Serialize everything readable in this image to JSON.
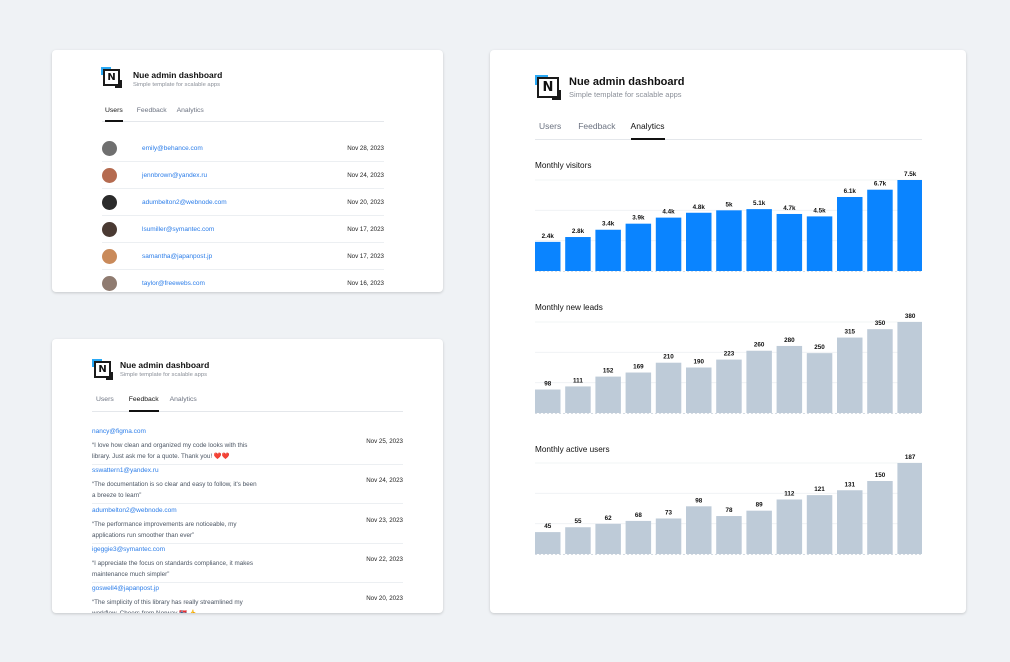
{
  "app": {
    "title": "Nue admin dashboard",
    "subtitle": "Simple template for scalable apps",
    "logo_letter": "N",
    "tabs": [
      "Users",
      "Feedback",
      "Analytics"
    ]
  },
  "colors": {
    "accent": "#0a84ff",
    "muted_bar": "#becbd8",
    "link": "#2b7de9"
  },
  "users": [
    {
      "email": "emily@behance.com",
      "date": "Nov 28, 2023",
      "avatar_color": "#6f6f6f"
    },
    {
      "email": "jennbrown@yandex.ru",
      "date": "Nov 24, 2023",
      "avatar_color": "#b56b50"
    },
    {
      "email": "adumbelton2@webnode.com",
      "date": "Nov 20, 2023",
      "avatar_color": "#2b2b2b"
    },
    {
      "email": "lsumiller@symantec.com",
      "date": "Nov 17, 2023",
      "avatar_color": "#4a3a33"
    },
    {
      "email": "samantha@japanpost.jp",
      "date": "Nov 17, 2023",
      "avatar_color": "#c98a5a"
    },
    {
      "email": "taylor@freewebs.com",
      "date": "Nov 16, 2023",
      "avatar_color": "#8f7b70"
    }
  ],
  "feedback": [
    {
      "email": "nancy@figma.com",
      "date": "Nov 25, 2023",
      "text": "“I love how clean and organized my code looks with this library. Just ask me for a quote. Thank you! ❤️❤️"
    },
    {
      "email": "sswattern1@yandex.ru",
      "date": "Nov 24, 2023",
      "text": "“The documentation is so clear and easy to follow, it's been a breeze to learn”"
    },
    {
      "email": "adumbelton2@webnode.com",
      "date": "Nov 23, 2023",
      "text": "“The performance improvements are noticeable, my applications run smoother than ever”"
    },
    {
      "email": "igeggie3@symantec.com",
      "date": "Nov 22, 2023",
      "text": "“I appreciate the focus on standards compliance, it makes maintenance much simpler”"
    },
    {
      "email": "goswell4@japanpost.jp",
      "date": "Nov 20, 2023",
      "text": "“The simplicity of this library has really streamlined my workflow. Cheers from Norway 🇳🇴 👍"
    }
  ],
  "chart_data": [
    {
      "type": "bar",
      "title": "Monthly visitors",
      "values": [
        2400,
        2800,
        3400,
        3900,
        4400,
        4800,
        5000,
        5100,
        4700,
        4500,
        6100,
        6700,
        7500
      ],
      "labels": [
        "2.4k",
        "2.8k",
        "3.4k",
        "3.9k",
        "4.4k",
        "4.8k",
        "5k",
        "5.1k",
        "4.7k",
        "4.5k",
        "6.1k",
        "6.7k",
        "7.5k"
      ],
      "ylim": [
        0,
        7500
      ],
      "color": "#0a84ff",
      "grid": true
    },
    {
      "type": "bar",
      "title": "Monthly new leads",
      "values": [
        98,
        111,
        152,
        169,
        210,
        190,
        223,
        260,
        280,
        250,
        315,
        350,
        380
      ],
      "labels": [
        "98",
        "111",
        "152",
        "169",
        "210",
        "190",
        "223",
        "260",
        "280",
        "250",
        "315",
        "350",
        "380"
      ],
      "ylim": [
        0,
        380
      ],
      "color": "#becbd8",
      "grid": true
    },
    {
      "type": "bar",
      "title": "Monthly active users",
      "values": [
        45,
        55,
        62,
        68,
        73,
        98,
        78,
        89,
        112,
        121,
        131,
        150,
        187
      ],
      "labels": [
        "45",
        "55",
        "62",
        "68",
        "73",
        "98",
        "78",
        "89",
        "112",
        "121",
        "131",
        "150",
        "187"
      ],
      "ylim": [
        0,
        187
      ],
      "color": "#becbd8",
      "grid": true
    }
  ]
}
